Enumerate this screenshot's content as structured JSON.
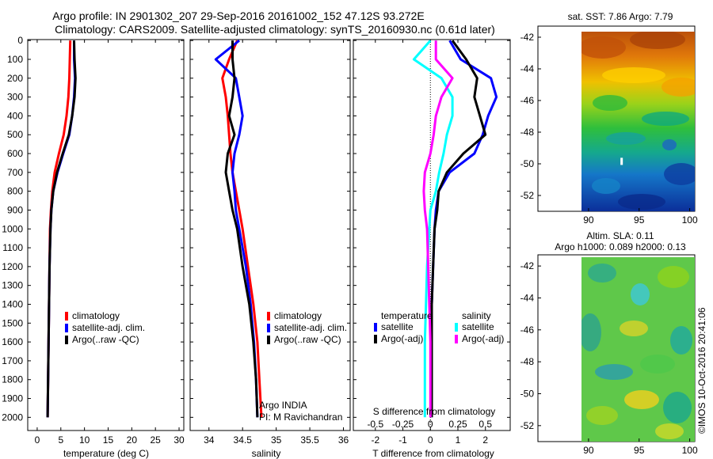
{
  "header": {
    "title_line1": "Argo profile: IN 2901302_207 29-Sep-2016 20161002_152 47.12S 93.272E",
    "title_line2": "Climatology: CARS2009. Satellite-adjusted climatology: synTS_20160930.nc (0.61d later)"
  },
  "depth_ticks": [
    "0",
    "100",
    "200",
    "300",
    "400",
    "500",
    "600",
    "700",
    "800",
    "900",
    "1000",
    "1100",
    "1200",
    "1300",
    "1400",
    "1500",
    "1600",
    "1700",
    "1800",
    "1900",
    "2000"
  ],
  "colors": {
    "climatology": "#ff0000",
    "satellite_adj": "#0000ff",
    "argo": "#000000",
    "t_satellite": "#0000ff",
    "t_argo": "#000000",
    "s_satellite": "#00ffff",
    "s_argo": "#ff00ff"
  },
  "chart_data": [
    {
      "type": "line",
      "xlabel": "temperature (deg C)",
      "ylabel": "",
      "xticks": [
        "0",
        "5",
        "10",
        "15",
        "20",
        "25",
        "30"
      ],
      "xlim": [
        -2,
        31
      ],
      "ylim": [
        2070,
        -5
      ],
      "y_reversed": true,
      "legend": [
        "climatology",
        "satellite-adj. clim.",
        "Argo(..raw -QC)"
      ],
      "series": [
        {
          "name": "climatology",
          "color": "#ff0000",
          "x": [
            7.0,
            6.9,
            6.8,
            6.6,
            6.2,
            5.6,
            4.6,
            3.7,
            3.2,
            2.9,
            2.7,
            2.6,
            2.5,
            2.4,
            2.3,
            2.2
          ],
          "y": [
            0,
            100,
            200,
            300,
            400,
            500,
            600,
            700,
            800,
            900,
            1000,
            1200,
            1400,
            1600,
            1800,
            2000
          ]
        },
        {
          "name": "satellite-adj. clim.",
          "color": "#0000ff",
          "x": [
            7.8,
            7.8,
            8.0,
            7.8,
            7.4,
            6.8,
            5.5,
            4.3,
            3.4,
            3.0,
            2.8,
            2.6,
            2.5,
            2.4,
            2.3,
            2.2
          ],
          "y": [
            0,
            100,
            200,
            300,
            400,
            500,
            600,
            700,
            800,
            900,
            1000,
            1200,
            1400,
            1600,
            1800,
            2000
          ]
        },
        {
          "name": "Argo(..raw -QC)",
          "color": "#000000",
          "x": [
            7.8,
            7.9,
            8.1,
            7.9,
            7.4,
            6.7,
            5.4,
            4.2,
            3.4,
            3.0,
            2.8,
            2.6,
            2.5,
            2.4,
            2.3,
            2.2
          ],
          "y": [
            0,
            100,
            200,
            300,
            400,
            500,
            600,
            700,
            800,
            900,
            1000,
            1200,
            1400,
            1600,
            1800,
            2000
          ]
        }
      ]
    },
    {
      "type": "line",
      "xlabel": "salinity",
      "ylabel": "",
      "xticks": [
        "34",
        "34.5",
        "35",
        "35.5",
        "36"
      ],
      "xlim": [
        33.72,
        36.1
      ],
      "ylim": [
        2070,
        -5
      ],
      "y_reversed": true,
      "legend": [
        "climatology",
        "satellite-adj. clim.",
        "Argo(..raw -QC)"
      ],
      "annotations": [
        "Argo INDIA",
        "PI: M Ravichandran"
      ],
      "series": [
        {
          "name": "climatology",
          "color": "#ff0000",
          "x": [
            34.42,
            34.3,
            34.2,
            34.25,
            34.28,
            34.3,
            34.32,
            34.35,
            34.4,
            34.45,
            34.5,
            34.58,
            34.66,
            34.72,
            34.75,
            34.78
          ],
          "y": [
            0,
            100,
            200,
            300,
            400,
            500,
            600,
            700,
            800,
            900,
            1000,
            1200,
            1400,
            1600,
            1800,
            2000
          ]
        },
        {
          "name": "satellite-adj. clim.",
          "color": "#0000ff",
          "x": [
            34.45,
            34.1,
            34.4,
            34.45,
            34.5,
            34.45,
            34.38,
            34.35,
            34.38,
            34.4,
            34.45,
            34.55,
            34.62,
            34.67,
            34.7,
            34.72
          ],
          "y": [
            0,
            100,
            200,
            300,
            400,
            500,
            600,
            700,
            800,
            900,
            1000,
            1200,
            1400,
            1600,
            1800,
            2000
          ]
        },
        {
          "name": "Argo(..raw -QC)",
          "color": "#000000",
          "x": [
            34.35,
            34.35,
            34.38,
            34.35,
            34.3,
            34.38,
            34.28,
            34.25,
            34.3,
            34.35,
            34.42,
            34.5,
            34.6,
            34.66,
            34.7,
            34.72
          ],
          "y": [
            0,
            100,
            200,
            300,
            400,
            500,
            600,
            700,
            800,
            900,
            1000,
            1200,
            1400,
            1600,
            1800,
            2000
          ]
        }
      ]
    },
    {
      "type": "line",
      "xlabel": "T difference from climatology",
      "xlabel_top": "S difference from climatology",
      "xticks": [
        "-2",
        "-1",
        "0",
        "1",
        "2"
      ],
      "xticks_top": [
        "-0.5",
        "-0.25",
        "0",
        "0.25",
        "0.5"
      ],
      "xlim": [
        -2.8,
        2.9
      ],
      "ylim": [
        2070,
        -5
      ],
      "y_reversed": true,
      "zero_line": "dotted",
      "legend_groups": {
        "temperature": [
          "satellite",
          "Argo(-adj)"
        ],
        "salinity": [
          "satellite",
          "Argo(-adj)"
        ]
      },
      "series": [
        {
          "name": "temperature satellite",
          "color": "#0000ff",
          "units": "deg C",
          "x": [
            0.7,
            1.1,
            2.2,
            2.4,
            2.1,
            1.9,
            1.6,
            0.7,
            0.3,
            0.2,
            0.15,
            0.1,
            0.05,
            0.05,
            0.05,
            0.05
          ],
          "y": [
            0,
            100,
            200,
            300,
            400,
            500,
            600,
            700,
            800,
            900,
            1000,
            1200,
            1400,
            1600,
            1800,
            2000
          ]
        },
        {
          "name": "temperature Argo(-adj)",
          "color": "#000000",
          "units": "deg C",
          "x": [
            0.8,
            1.3,
            1.7,
            1.6,
            1.8,
            2.0,
            1.2,
            0.6,
            0.3,
            0.25,
            0.15,
            0.1,
            0.05,
            0.05,
            0.05,
            0.05
          ],
          "y": [
            0,
            100,
            200,
            300,
            400,
            500,
            600,
            700,
            800,
            900,
            1000,
            1200,
            1400,
            1600,
            1800,
            2000
          ]
        },
        {
          "name": "salinity satellite",
          "color": "#00ffff",
          "units": "psu",
          "x": [
            0.0,
            -0.15,
            0.1,
            0.2,
            0.2,
            0.15,
            0.12,
            0.08,
            0.05,
            0.0,
            -0.01,
            -0.03,
            -0.04,
            -0.05,
            -0.05,
            -0.05
          ],
          "y": [
            0,
            100,
            200,
            300,
            400,
            500,
            600,
            700,
            800,
            900,
            1000,
            1200,
            1400,
            1600,
            1800,
            2000
          ]
        },
        {
          "name": "salinity Argo(-adj)",
          "color": "#ff00ff",
          "units": "psu",
          "x": [
            0.05,
            0.05,
            0.2,
            0.1,
            0.05,
            0.03,
            0.0,
            -0.05,
            -0.06,
            -0.05,
            -0.03,
            -0.02,
            -0.01,
            0.0,
            0.0,
            0.0
          ],
          "y": [
            0,
            100,
            200,
            300,
            400,
            500,
            600,
            700,
            800,
            900,
            1000,
            1200,
            1400,
            1600,
            1800,
            2000
          ]
        }
      ]
    },
    {
      "type": "heatmap",
      "title": "sat. SST: 7.86 Argo: 7.79",
      "xticks": [
        "90",
        "95",
        "100"
      ],
      "yticks": [
        "-42",
        "-44",
        "-46",
        "-48",
        "-50",
        "-52"
      ],
      "xlim": [
        85,
        100.5
      ],
      "ylim": [
        -53,
        -41.3
      ],
      "marker_lon": 93.272,
      "marker_lat": -47.12
    },
    {
      "type": "heatmap",
      "title": "Altim. SLA: 0.11",
      "subtitle": "Argo h1000: 0.089 h2000: 0.13",
      "xticks": [
        "90",
        "95",
        "100"
      ],
      "yticks": [
        "-42",
        "-44",
        "-46",
        "-48",
        "-50",
        "-52"
      ],
      "xlim": [
        85,
        100.5
      ],
      "ylim": [
        -53,
        -41.3
      ]
    }
  ],
  "footer_stamp": "©IMOS 10-Oct-2016 20:41:06"
}
